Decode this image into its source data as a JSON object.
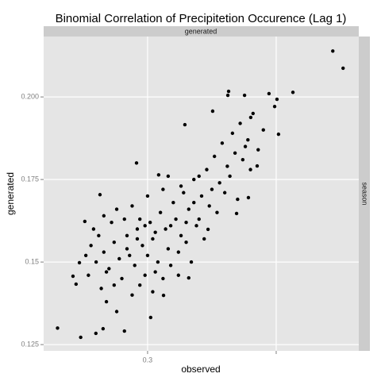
{
  "chart_data": {
    "type": "scatter",
    "title": "Binomial Correlation of Precipitetion Occurence (Lag 1)",
    "x_label": "observed",
    "y_label": "generated",
    "facet_top": "generated",
    "facet_right": "season",
    "color": "#000000",
    "grid": true,
    "xlim": [
      0.2596,
      0.3821
    ],
    "ylim": [
      0.1231,
      0.2183
    ],
    "xticks": [
      0.3
    ],
    "x_unlabeled_ticks": [
      0.35
    ],
    "yticks": [
      0.125,
      0.15,
      0.175,
      {
        "value": 0.2,
        "label": "0.200"
      }
    ],
    "x": [
      0.372,
      0.376,
      0.265,
      0.274,
      0.3315,
      0.3312,
      0.3377,
      0.3472,
      0.3503,
      0.3565,
      0.3494,
      0.3509,
      0.3401,
      0.3145,
      0.3253,
      0.3426,
      0.3392,
      0.3346,
      0.316,
      0.3235,
      0.3062,
      0.3012,
      0.291,
      0.2827,
      0.2799,
      0.2722,
      0.271,
      0.2735,
      0.2756,
      0.2815,
      0.2957,
      0.3043,
      0.28,
      0.283,
      0.285,
      0.287,
      0.289,
      0.29,
      0.292,
      0.293,
      0.295,
      0.296,
      0.298,
      0.299,
      0.301,
      0.302,
      0.304,
      0.305,
      0.307,
      0.308,
      0.31,
      0.311,
      0.313,
      0.314,
      0.316,
      0.318,
      0.319,
      0.321,
      0.323,
      0.324,
      0.326,
      0.328,
      0.329,
      0.331,
      0.333,
      0.334,
      0.336,
      0.338,
      0.34,
      0.341,
      0.282,
      0.284,
      0.286,
      0.288,
      0.278,
      0.277,
      0.279,
      0.281,
      0.294,
      0.297,
      0.3,
      0.303,
      0.306,
      0.309,
      0.312,
      0.315,
      0.317,
      0.32,
      0.322,
      0.325,
      0.327,
      0.33,
      0.332,
      0.335,
      0.337,
      0.339,
      0.343,
      0.345,
      0.288,
      0.284,
      0.291,
      0.294,
      0.297,
      0.3,
      0.303,
      0.306,
      0.309,
      0.312,
      0.315,
      0.318,
      0.276,
      0.283,
      0.287,
      0.292,
      0.296,
      0.299,
      0.302,
      0.308,
      0.313,
      0.32
    ],
    "values": [
      0.2139,
      0.2087,
      0.13,
      0.1272,
      0.2017,
      0.2005,
      0.2005,
      0.201,
      0.1993,
      0.2014,
      0.1971,
      0.1887,
      0.1938,
      0.1916,
      0.1957,
      0.1791,
      0.1695,
      0.1647,
      0.1452,
      0.1599,
      0.1399,
      0.1332,
      0.1291,
      0.1298,
      0.1284,
      0.1433,
      0.1457,
      0.1498,
      0.1623,
      0.1704,
      0.18,
      0.1764,
      0.15,
      0.153,
      0.148,
      0.156,
      0.151,
      0.145,
      0.158,
      0.152,
      0.149,
      0.16,
      0.155,
      0.146,
      0.162,
      0.157,
      0.15,
      0.165,
      0.16,
      0.154,
      0.168,
      0.163,
      0.158,
      0.171,
      0.166,
      0.175,
      0.161,
      0.17,
      0.178,
      0.167,
      0.182,
      0.174,
      0.186,
      0.179,
      0.189,
      0.183,
      0.192,
      0.185,
      0.178,
      0.195,
      0.142,
      0.138,
      0.162,
      0.166,
      0.155,
      0.146,
      0.16,
      0.158,
      0.14,
      0.143,
      0.17,
      0.147,
      0.172,
      0.149,
      0.153,
      0.156,
      0.15,
      0.163,
      0.157,
      0.172,
      0.165,
      0.171,
      0.176,
      0.169,
      0.181,
      0.187,
      0.184,
      0.19,
      0.135,
      0.147,
      0.163,
      0.167,
      0.163,
      0.152,
      0.159,
      0.145,
      0.161,
      0.146,
      0.162,
      0.168,
      0.152,
      0.164,
      0.143,
      0.154,
      0.157,
      0.161,
      0.141,
      0.176,
      0.173,
      0.176
    ]
  }
}
